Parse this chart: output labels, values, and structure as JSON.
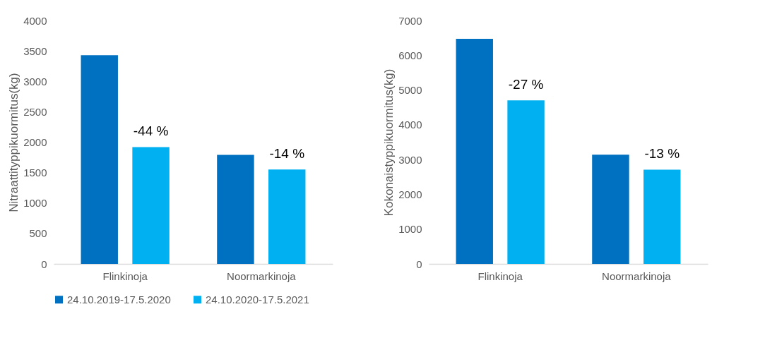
{
  "chart_data": [
    {
      "type": "bar",
      "ylabel": "Nitraattityppikuormitus(kg)",
      "categories": [
        "Flinkinoja",
        "Noormarkinoja"
      ],
      "ylim": [
        0,
        4000
      ],
      "yticks": [
        0,
        500,
        1000,
        1500,
        2000,
        2500,
        3000,
        3500,
        4000
      ],
      "legend": "bottom",
      "series": [
        {
          "name": "24.10.2019-17.5.2020",
          "color": "#0070c0",
          "values": [
            3430,
            1790
          ]
        },
        {
          "name": "24.10.2020-17.5.2021",
          "color": "#00b0f0",
          "values": [
            1920,
            1550
          ]
        }
      ],
      "annotations": [
        "-44 %",
        "-14 %"
      ]
    },
    {
      "type": "bar",
      "ylabel": "Kokonaistyppikuormitus(kg)",
      "categories": [
        "Flinkinoja",
        "Noormarkinoja"
      ],
      "ylim": [
        0,
        7000
      ],
      "yticks": [
        0,
        1000,
        2000,
        3000,
        4000,
        5000,
        6000,
        7000
      ],
      "series": [
        {
          "color": "#0070c0",
          "values": [
            6470,
            3140
          ]
        },
        {
          "color": "#00b0f0",
          "values": [
            4700,
            2710
          ]
        }
      ],
      "annotations": [
        "-27 %",
        "-13 %"
      ]
    }
  ]
}
